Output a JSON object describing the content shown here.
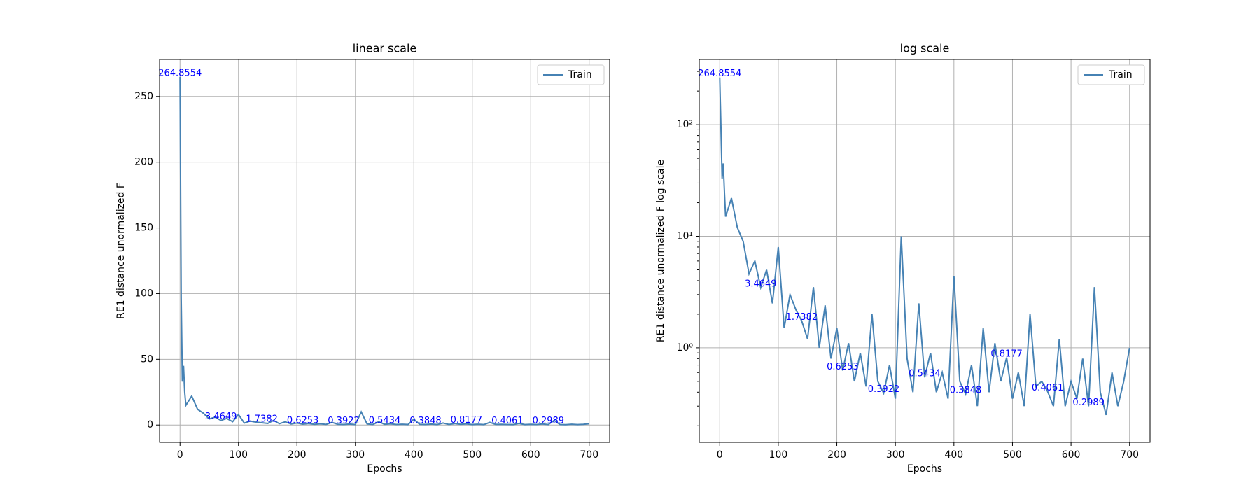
{
  "chart_data": [
    {
      "type": "line",
      "title": "linear scale",
      "xlabel": "Epochs",
      "ylabel": "RE1 distance unormalized F",
      "log_y": false,
      "grid": true,
      "legend": "upper right",
      "xlim": [
        -35,
        735
      ],
      "xticks": [
        0,
        100,
        200,
        300,
        400,
        500,
        600,
        700
      ],
      "ylim": [
        -13.2,
        278.1
      ],
      "yticks": [
        0,
        50,
        100,
        150,
        200,
        250
      ],
      "x": [
        0,
        2,
        4,
        6,
        8,
        10,
        20,
        30,
        40,
        50,
        60,
        70,
        80,
        90,
        100,
        110,
        120,
        130,
        140,
        150,
        160,
        170,
        180,
        190,
        200,
        210,
        220,
        230,
        240,
        250,
        260,
        270,
        280,
        290,
        300,
        310,
        320,
        330,
        340,
        350,
        360,
        370,
        380,
        390,
        400,
        410,
        420,
        430,
        440,
        450,
        460,
        470,
        480,
        490,
        500,
        510,
        520,
        530,
        540,
        550,
        560,
        570,
        580,
        590,
        600,
        610,
        620,
        630,
        640,
        650,
        660,
        670,
        680,
        690,
        700
      ],
      "series": [
        {
          "name": "Train",
          "color": "#4682b4",
          "values": [
            264.8554,
            97,
            33,
            45,
            25,
            15,
            22,
            12,
            9,
            4.6,
            6,
            3.4649,
            5,
            2.5,
            8,
            1.5,
            3,
            2.2,
            1.7382,
            1.2,
            3.5,
            1.0,
            2.4,
            0.8,
            1.5,
            0.6253,
            1.1,
            0.5,
            0.9,
            0.45,
            2.0,
            0.5,
            0.3922,
            0.7,
            0.35,
            10,
            0.8,
            0.4,
            2.5,
            0.5434,
            0.9,
            0.4,
            0.6,
            0.35,
            4.4,
            0.5,
            0.3848,
            0.7,
            0.3,
            1.5,
            0.4,
            1.1,
            0.5,
            0.8177,
            0.35,
            0.6,
            0.3,
            2.0,
            0.45,
            0.5,
            0.4061,
            0.3,
            1.2,
            0.3,
            0.5,
            0.35,
            0.8,
            0.2989,
            3.5,
            0.4,
            0.25,
            0.6,
            0.3,
            0.5,
            1.0
          ]
        }
      ],
      "annotations": {
        "color": "#0000ff",
        "x": [
          0,
          70,
          140,
          210,
          280,
          350,
          420,
          490,
          560,
          630
        ],
        "values": [
          264.8554,
          3.4649,
          1.7382,
          0.6253,
          0.3922,
          0.5434,
          0.3848,
          0.8177,
          0.4061,
          0.2989
        ]
      }
    },
    {
      "type": "line",
      "title": "log scale",
      "xlabel": "Epochs",
      "ylabel": "RE1 distance unormalized F log scale",
      "log_y": true,
      "grid": true,
      "legend": "upper right",
      "xlim": [
        -35,
        735
      ],
      "xticks": [
        0,
        100,
        200,
        300,
        400,
        500,
        600,
        700
      ],
      "ylim": [
        0.142,
        384
      ],
      "yticks": [
        {
          "value": 1,
          "label": "10⁰"
        },
        {
          "value": 10,
          "label": "10¹"
        },
        {
          "value": 100,
          "label": "10²"
        }
      ],
      "x": [
        0,
        2,
        4,
        6,
        8,
        10,
        20,
        30,
        40,
        50,
        60,
        70,
        80,
        90,
        100,
        110,
        120,
        130,
        140,
        150,
        160,
        170,
        180,
        190,
        200,
        210,
        220,
        230,
        240,
        250,
        260,
        270,
        280,
        290,
        300,
        310,
        320,
        330,
        340,
        350,
        360,
        370,
        380,
        390,
        400,
        410,
        420,
        430,
        440,
        450,
        460,
        470,
        480,
        490,
        500,
        510,
        520,
        530,
        540,
        550,
        560,
        570,
        580,
        590,
        600,
        610,
        620,
        630,
        640,
        650,
        660,
        670,
        680,
        690,
        700
      ],
      "series": [
        {
          "name": "Train",
          "color": "#4682b4",
          "values": [
            264.8554,
            97,
            33,
            45,
            25,
            15,
            22,
            12,
            9,
            4.6,
            6,
            3.4649,
            5,
            2.5,
            8,
            1.5,
            3,
            2.2,
            1.7382,
            1.2,
            3.5,
            1.0,
            2.4,
            0.8,
            1.5,
            0.6253,
            1.1,
            0.5,
            0.9,
            0.45,
            2.0,
            0.5,
            0.3922,
            0.7,
            0.35,
            10,
            0.8,
            0.4,
            2.5,
            0.5434,
            0.9,
            0.4,
            0.6,
            0.35,
            4.4,
            0.5,
            0.3848,
            0.7,
            0.3,
            1.5,
            0.4,
            1.1,
            0.5,
            0.8177,
            0.35,
            0.6,
            0.3,
            2.0,
            0.45,
            0.5,
            0.4061,
            0.3,
            1.2,
            0.3,
            0.5,
            0.35,
            0.8,
            0.2989,
            3.5,
            0.4,
            0.25,
            0.6,
            0.3,
            0.5,
            1.0
          ]
        }
      ],
      "annotations": {
        "color": "#0000ff",
        "x": [
          0,
          70,
          140,
          210,
          280,
          350,
          420,
          490,
          560,
          630
        ],
        "values": [
          264.8554,
          3.4649,
          1.7382,
          0.6253,
          0.3922,
          0.5434,
          0.3848,
          0.8177,
          0.4061,
          0.2989
        ]
      }
    }
  ]
}
